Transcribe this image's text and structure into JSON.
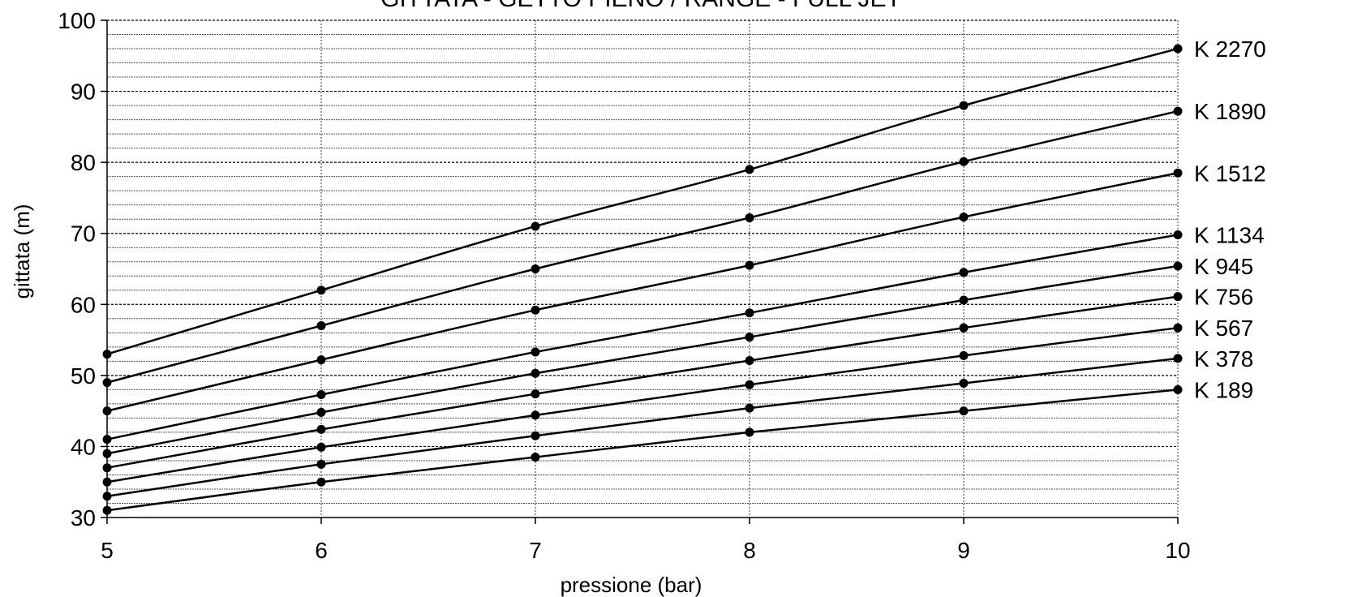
{
  "chart_data": {
    "type": "line",
    "title": "GITTATA - GETTO PIENO / RANGE - FULL JET",
    "xlabel": "pressione (bar)",
    "ylabel": "gittata (m)",
    "x": [
      5,
      6,
      7,
      8,
      9,
      10
    ],
    "xlim": [
      5,
      10
    ],
    "ylim": [
      30,
      100
    ],
    "x_ticks": [
      "5",
      "6",
      "7",
      "8",
      "9",
      "10"
    ],
    "y_ticks": [
      "30",
      "40",
      "50",
      "60",
      "70",
      "80",
      "90",
      "100"
    ],
    "grid": {
      "major_y": 10,
      "minor_y": 2,
      "vertical": true
    },
    "legend": "labels at right end of each line",
    "series": [
      {
        "name": "K 2270",
        "values": [
          53,
          62,
          71,
          79,
          88,
          96
        ]
      },
      {
        "name": "K 1890",
        "values": [
          49,
          57,
          65,
          72.2,
          80.1,
          87.2
        ]
      },
      {
        "name": "K 1512",
        "values": [
          45,
          52.2,
          59.2,
          65.5,
          72.3,
          78.5
        ]
      },
      {
        "name": "K 1134",
        "values": [
          41,
          47.3,
          53.3,
          58.8,
          64.5,
          69.8
        ]
      },
      {
        "name": "K 945",
        "values": [
          39,
          44.8,
          50.3,
          55.4,
          60.6,
          65.4
        ]
      },
      {
        "name": "K 756",
        "values": [
          37,
          42.4,
          47.4,
          52.1,
          56.7,
          61.1
        ]
      },
      {
        "name": "K 567",
        "values": [
          35,
          39.9,
          44.4,
          48.7,
          52.8,
          56.7
        ]
      },
      {
        "name": "K 378",
        "values": [
          33,
          37.5,
          41.5,
          45.4,
          48.9,
          52.4
        ]
      },
      {
        "name": "K 189",
        "values": [
          31,
          35,
          38.5,
          42,
          45,
          48
        ]
      }
    ]
  }
}
